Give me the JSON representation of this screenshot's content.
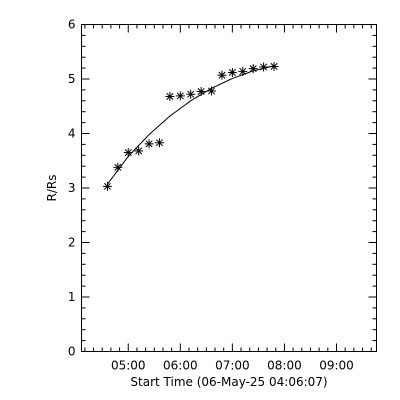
{
  "chart_data": {
    "type": "scatter",
    "xlabel": "Start Time (06-May-25 04:06:07)",
    "ylabel": "R/Rs",
    "x_ticks": [
      "05:00",
      "06:00",
      "07:00",
      "08:00",
      "09:00"
    ],
    "y_ticks": [
      "0",
      "1",
      "2",
      "3",
      "4",
      "5",
      "6"
    ],
    "xlim": [
      "04:06:07",
      "09:46:07"
    ],
    "ylim": [
      0,
      6
    ],
    "grid": false,
    "marker": "asterisk",
    "points": [
      {
        "x": "04:36",
        "y": 3.03
      },
      {
        "x": "04:48",
        "y": 3.38
      },
      {
        "x": "05:00",
        "y": 3.65
      },
      {
        "x": "05:12",
        "y": 3.68
      },
      {
        "x": "05:24",
        "y": 3.81
      },
      {
        "x": "05:36",
        "y": 3.83
      },
      {
        "x": "05:48",
        "y": 4.68
      },
      {
        "x": "06:00",
        "y": 4.69
      },
      {
        "x": "06:12",
        "y": 4.72
      },
      {
        "x": "06:24",
        "y": 4.77
      },
      {
        "x": "06:36",
        "y": 4.78
      },
      {
        "x": "06:48",
        "y": 5.07
      },
      {
        "x": "07:00",
        "y": 5.12
      },
      {
        "x": "07:12",
        "y": 5.14
      },
      {
        "x": "07:24",
        "y": 5.19
      },
      {
        "x": "07:36",
        "y": 5.22
      },
      {
        "x": "07:48",
        "y": 5.23
      }
    ],
    "fit": {
      "type": "curve",
      "x": [
        "04:36",
        "05:00",
        "05:24",
        "05:48",
        "06:12",
        "06:36",
        "07:00",
        "07:24",
        "07:48"
      ],
      "y": [
        3.07,
        3.58,
        3.98,
        4.32,
        4.6,
        4.83,
        5.01,
        5.15,
        5.24
      ]
    }
  }
}
